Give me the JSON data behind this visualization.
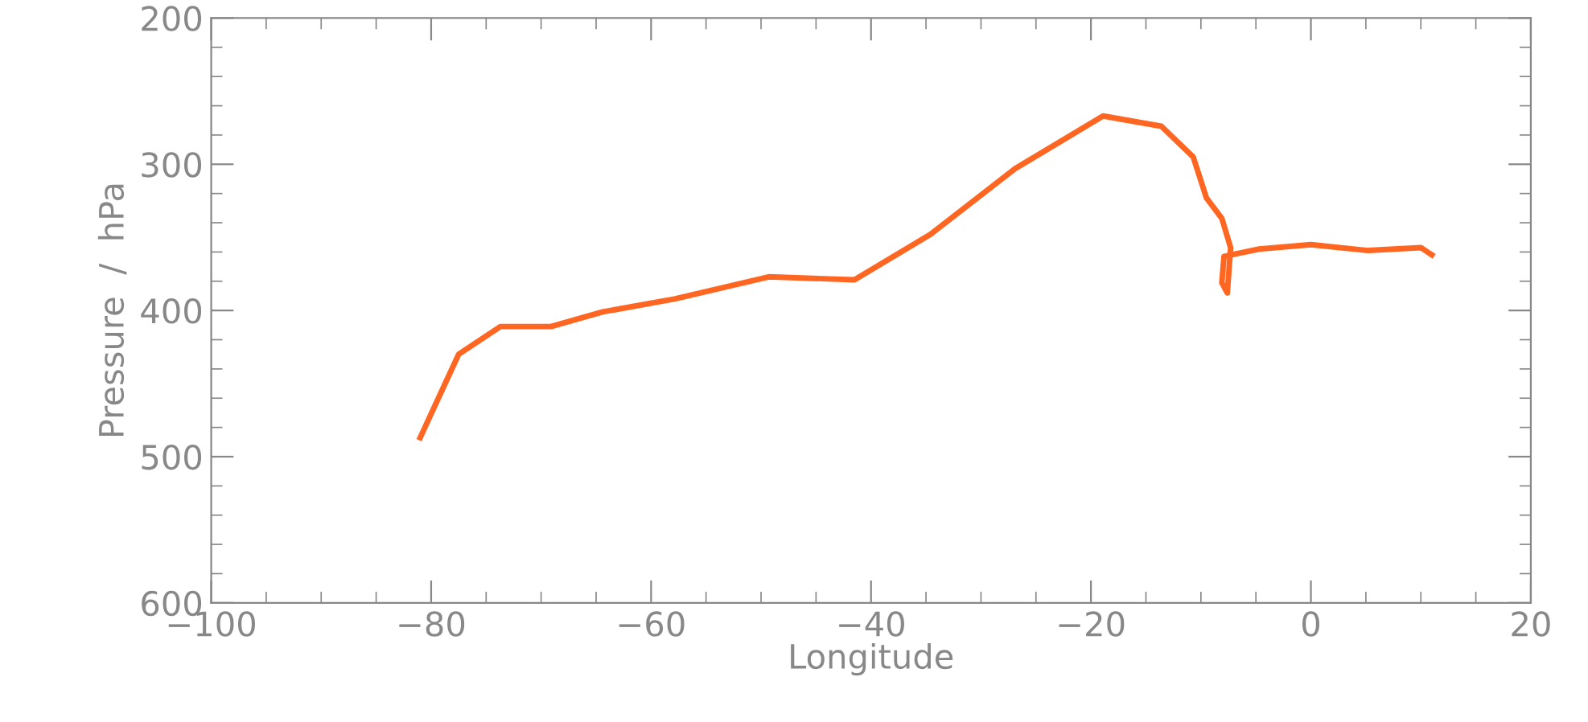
{
  "chart_data": {
    "type": "line",
    "xlabel": "Longitude",
    "ylabel": "Pressure  /  hPa",
    "x": [
      -81.0,
      -77.5,
      -73.7,
      -69.1,
      -64.4,
      -57.8,
      -49.3,
      -41.5,
      -34.6,
      -26.9,
      -18.9,
      -13.6,
      -10.7,
      -9.5,
      -8.1,
      -7.3,
      -7.6,
      -8.1,
      -7.9,
      -6.6,
      -4.7,
      0.0,
      5.2,
      7.6,
      10.0,
      11.0
    ],
    "series": [
      {
        "color": "#ff6622",
        "values": [
          487,
          430,
          411,
          411,
          401,
          392,
          377,
          379,
          348,
          303,
          267,
          274,
          295,
          323,
          337,
          357,
          388,
          381,
          363,
          361,
          358,
          355,
          359,
          358,
          357,
          362
        ]
      }
    ],
    "xlim": [
      -100,
      20
    ],
    "xticks": [
      {
        "value": -100,
        "label": "−100"
      },
      {
        "value": -80,
        "label": "−80"
      },
      {
        "value": -60,
        "label": "−60"
      },
      {
        "value": -40,
        "label": "−40"
      },
      {
        "value": -20,
        "label": "−20"
      },
      0,
      20
    ],
    "ylim": [
      600,
      200
    ],
    "yticks": [
      200,
      300,
      400,
      500,
      600
    ],
    "grid": false,
    "marker": "none",
    "line_style": "solid"
  }
}
